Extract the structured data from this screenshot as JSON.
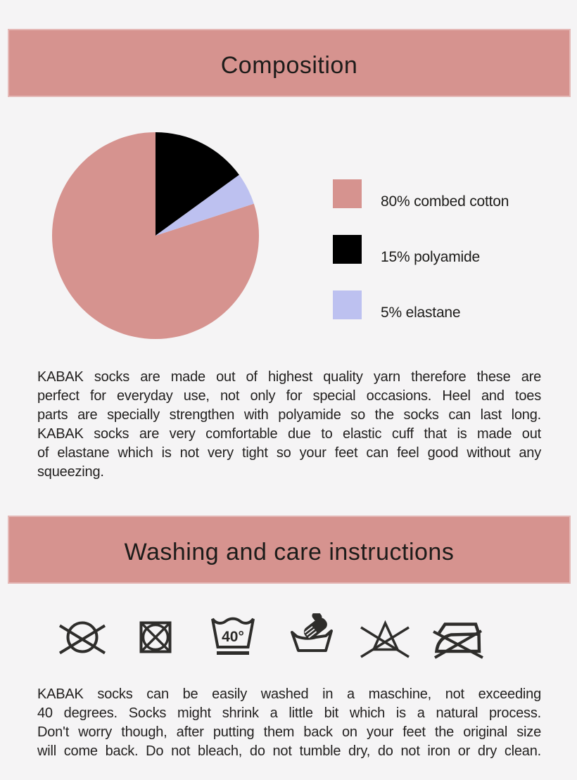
{
  "page": {
    "background_color": "#f5f4f5",
    "accent_color": "#d6938f",
    "text_color": "#211f1e",
    "icon_color": "#2e2d2b"
  },
  "composition": {
    "title": "Composition",
    "paragraph_lines": [
      "KABAK socks are made out of highest quality yarn therefore these are",
      "perfect for everyday use, not only for special occasions. Heel and toes",
      "parts are specially strengthen with polyamide so the socks can last long.",
      "KABAK socks are very comfortable due to elastic cuff that is made out",
      "of elastane which is not very tight so your feet can feel good without any",
      "squeezing."
    ]
  },
  "chart_data": {
    "type": "pie",
    "title": "Composition",
    "start_angle_deg": -18,
    "direction": "clockwise",
    "legend_position": "right",
    "slices": [
      {
        "name": "combed cotton",
        "value": 80,
        "label": "80% combed cotton",
        "color": "#d6938f"
      },
      {
        "name": "polyamide",
        "value": 15,
        "label": "15% polyamide",
        "color": "#000000"
      },
      {
        "name": "elastane",
        "value": 5,
        "label": "5% elastane",
        "color": "#bdc1f0"
      }
    ]
  },
  "care": {
    "title": "Washing and care instructions",
    "wash_temperature": "40°",
    "icons": [
      {
        "name": "do-not-dry-clean-icon"
      },
      {
        "name": "do-not-tumble-dry-icon"
      },
      {
        "name": "machine-wash-40-gentle-icon"
      },
      {
        "name": "hand-wash-icon"
      },
      {
        "name": "do-not-bleach-icon"
      },
      {
        "name": "do-not-iron-icon"
      }
    ],
    "paragraph_lines": [
      "KABAK socks can be easily washed in a maschine, not exceeding",
      "40 degrees. Socks might shrink a little bit which is a natural process.",
      "Don't worry though, after putting them back on your feet the original size",
      "will come back. Do not bleach, do not tumble dry, do not iron or dry clean."
    ]
  }
}
